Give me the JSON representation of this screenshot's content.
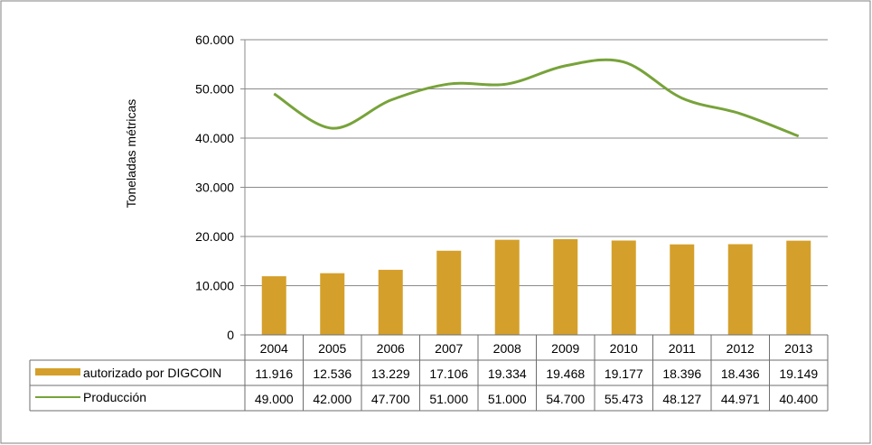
{
  "chart_data": {
    "type": "bar+line",
    "title": "",
    "xlabel": "",
    "ylabel": "Toneladas métricas",
    "ylim": [
      0,
      60000
    ],
    "y_ticks": [
      "0",
      "10.000",
      "20.000",
      "30.000",
      "40.000",
      "50.000",
      "60.000"
    ],
    "y_tick_values": [
      0,
      10000,
      20000,
      30000,
      40000,
      50000,
      60000
    ],
    "grid": true,
    "legend": "data-table",
    "categories": [
      "2004",
      "2005",
      "2006",
      "2007",
      "2008",
      "2009",
      "2010",
      "2011",
      "2012",
      "2013"
    ],
    "series": [
      {
        "name": "autorizado por DIGCOIN",
        "kind": "bar",
        "color": "#d4a02b",
        "values": [
          11916,
          12536,
          13229,
          17106,
          19334,
          19468,
          19177,
          18396,
          18436,
          19149
        ],
        "labels": [
          "11.916",
          "12.536",
          "13.229",
          "17.106",
          "19.334",
          "19.468",
          "19.177",
          "18.396",
          "18.436",
          "19.149"
        ]
      },
      {
        "name": "Producción",
        "kind": "line",
        "color": "#77a33a",
        "values": [
          49000,
          42000,
          47700,
          51000,
          51000,
          54700,
          55473,
          48127,
          44971,
          40400
        ],
        "labels": [
          "49.000",
          "42.000",
          "47.700",
          "51.000",
          "51.000",
          "54.700",
          "55.473",
          "48.127",
          "44.971",
          "40.400"
        ]
      }
    ]
  }
}
